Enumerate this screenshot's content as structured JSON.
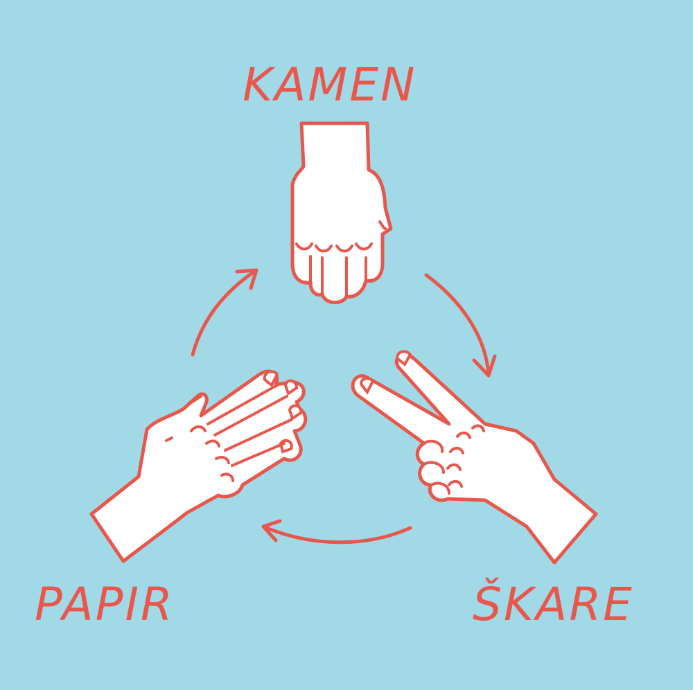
{
  "labels": {
    "rock": "KAMEN",
    "paper": "PAPIR",
    "scissors": "ŠKARE"
  },
  "colors": {
    "background": "#a2d9e6",
    "accent": "#e8574c",
    "hand_fill": "#ffffff"
  },
  "icons": {
    "rock": "fist-icon",
    "paper": "open-hand-icon",
    "scissors": "two-fingers-icon",
    "cycle": "circular-arrow-icon"
  }
}
